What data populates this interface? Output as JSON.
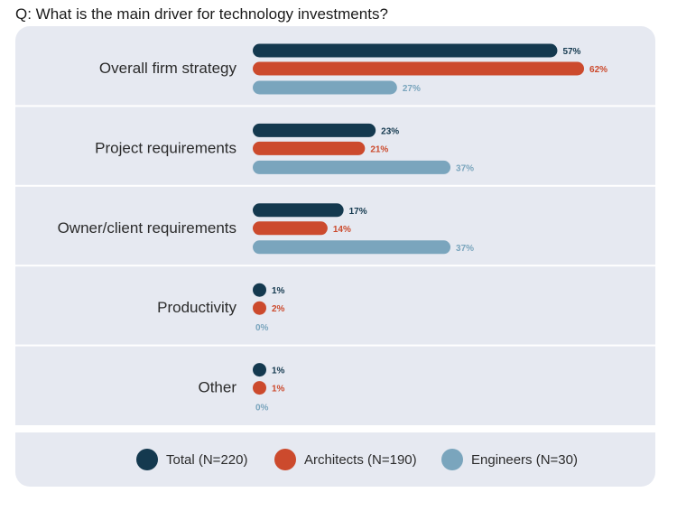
{
  "question": "Q: What is the main driver for technology investments?",
  "colors": {
    "total": "#14394f",
    "architects": "#cc4a2d",
    "engineers": "#7aa5bd",
    "panel": "#e6e9f1",
    "divider": "#ffffff"
  },
  "chart_data": {
    "type": "bar",
    "orientation": "horizontal",
    "title": "Q: What is the main driver for technology investments?",
    "categories": [
      "Overall firm strategy",
      "Project requirements",
      "Owner/client requirements",
      "Productivity",
      "Other"
    ],
    "series": [
      {
        "name": "Total (N=220)",
        "key": "total",
        "values": [
          57,
          23,
          17,
          1,
          1
        ],
        "labels": [
          "57%",
          "23%",
          "17%",
          "1%",
          "1%"
        ]
      },
      {
        "name": "Architects (N=190)",
        "key": "architects",
        "values": [
          62,
          21,
          14,
          2,
          1
        ],
        "labels": [
          "62%",
          "21%",
          "14%",
          "2%",
          "1%"
        ]
      },
      {
        "name": "Engineers (N=30)",
        "key": "engineers",
        "values": [
          27,
          37,
          37,
          0,
          0
        ],
        "labels": [
          "27%",
          "37%",
          "37%",
          "0%",
          "0%"
        ]
      }
    ],
    "value_unit": "%",
    "legend_position": "bottom"
  },
  "legend": [
    {
      "label": "Total (N=220)",
      "key": "total"
    },
    {
      "label": "Architects (N=190)",
      "key": "architects"
    },
    {
      "label": "Engineers (N=30)",
      "key": "engineers"
    }
  ]
}
